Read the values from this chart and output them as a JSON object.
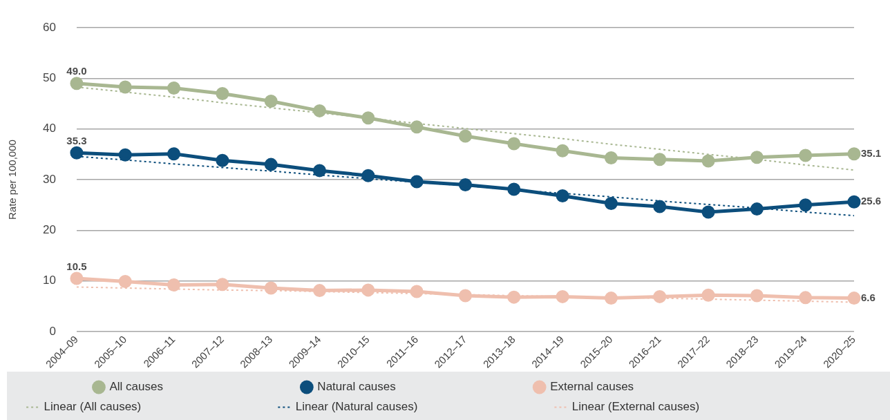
{
  "chart_data": {
    "type": "line",
    "ylabel": "Rate per 100,000",
    "categories": [
      "2004–09",
      "2005–10",
      "2006–11",
      "2007–12",
      "2008–13",
      "2009–14",
      "2010–15",
      "2011–16",
      "2012–17",
      "2013–18",
      "2014–19",
      "2015–20",
      "2016–21",
      "2017–22",
      "2018–23",
      "2019–24",
      "2020–25"
    ],
    "ylim": [
      0,
      60
    ],
    "yticks": [
      0,
      10,
      20,
      30,
      40,
      50,
      60
    ],
    "grid": "y",
    "legend": "bottom",
    "series": [
      {
        "name": "All causes",
        "color": "#a8b791",
        "marker": "circle",
        "line_style": "solid",
        "values": [
          49.0,
          48.3,
          48.1,
          47.0,
          45.5,
          43.6,
          42.2,
          40.4,
          38.6,
          37.1,
          35.7,
          34.3,
          34.0,
          33.7,
          34.4,
          34.8,
          35.1
        ],
        "value_labels": [
          "49.0",
          null,
          null,
          null,
          null,
          null,
          null,
          null,
          null,
          null,
          null,
          null,
          null,
          null,
          null,
          null,
          "35.1"
        ]
      },
      {
        "name": "Natural causes",
        "color": "#0c4e7c",
        "marker": "circle",
        "line_style": "solid",
        "values": [
          35.3,
          34.9,
          35.1,
          33.8,
          33.0,
          31.8,
          30.8,
          29.6,
          29.0,
          28.1,
          26.8,
          25.3,
          24.7,
          23.6,
          24.2,
          25.0,
          25.6
        ],
        "value_labels": [
          "35.3",
          null,
          null,
          null,
          null,
          null,
          null,
          null,
          null,
          null,
          null,
          null,
          null,
          null,
          null,
          null,
          "25.6"
        ]
      },
      {
        "name": "External causes",
        "color": "#efbfae",
        "marker": "circle",
        "line_style": "solid",
        "values": [
          10.5,
          9.9,
          9.2,
          9.3,
          8.6,
          8.1,
          8.2,
          7.9,
          7.1,
          6.8,
          6.9,
          6.6,
          6.9,
          7.2,
          7.1,
          6.7,
          6.6
        ],
        "value_labels": [
          "10.5",
          null,
          null,
          null,
          null,
          null,
          null,
          null,
          null,
          null,
          null,
          null,
          null,
          null,
          null,
          null,
          "6.6"
        ]
      },
      {
        "name": "Linear (All causes)",
        "color": "#a8b791",
        "marker": "none",
        "line_style": "dotted",
        "values": [
          48.3,
          47.3,
          46.3,
          45.2,
          44.2,
          43.2,
          42.2,
          41.1,
          40.1,
          39.1,
          38.1,
          37.0,
          36.0,
          35.0,
          34.0,
          32.9,
          31.9
        ]
      },
      {
        "name": "Linear (Natural causes)",
        "color": "#0c4e7c",
        "marker": "none",
        "line_style": "dotted",
        "values": [
          34.6,
          33.9,
          33.1,
          32.4,
          31.7,
          30.9,
          30.2,
          29.5,
          28.8,
          28.0,
          27.3,
          26.6,
          25.8,
          25.1,
          24.4,
          23.6,
          22.9
        ]
      },
      {
        "name": "Linear (External causes)",
        "color": "#efbfae",
        "marker": "none",
        "line_style": "dotted",
        "values": [
          8.8,
          8.6,
          8.4,
          8.2,
          8.1,
          7.9,
          7.7,
          7.5,
          7.3,
          7.1,
          6.9,
          6.7,
          6.6,
          6.4,
          6.2,
          6.0,
          5.8
        ]
      }
    ]
  }
}
